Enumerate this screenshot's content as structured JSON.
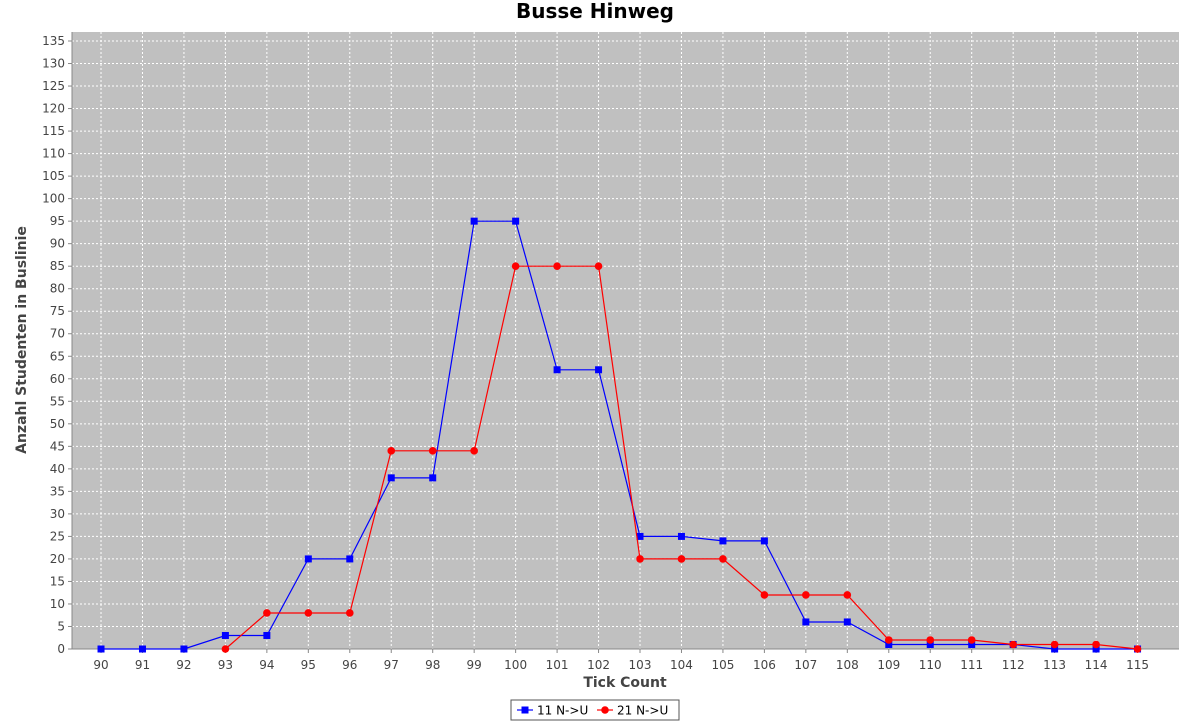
{
  "chart_data": {
    "type": "line",
    "title": "Busse Hinweg",
    "xlabel": "Tick Count",
    "ylabel": "Anzahl Studenten in Buslinie",
    "x": [
      90,
      91,
      92,
      93,
      94,
      95,
      96,
      97,
      98,
      99,
      100,
      101,
      102,
      103,
      104,
      105,
      106,
      107,
      108,
      109,
      110,
      111,
      112,
      113,
      114,
      115
    ],
    "xlim": [
      89.3,
      116.0
    ],
    "ylim": [
      0,
      137
    ],
    "yticks": [
      0,
      5,
      10,
      15,
      20,
      25,
      30,
      35,
      40,
      45,
      50,
      55,
      60,
      65,
      70,
      75,
      80,
      85,
      90,
      95,
      100,
      105,
      110,
      115,
      120,
      125,
      130,
      135
    ],
    "grid": true,
    "legend_position": "bottom-center",
    "plot_background": "#c0c0c0",
    "series": [
      {
        "name": "11 N->U",
        "color": "#0000ff",
        "marker": "square",
        "points": [
          [
            90,
            0
          ],
          [
            91,
            0
          ],
          [
            92,
            0
          ],
          [
            93,
            3
          ],
          [
            94,
            3
          ],
          [
            95,
            20
          ],
          [
            96,
            20
          ],
          [
            97,
            38
          ],
          [
            98,
            38
          ],
          [
            99,
            95
          ],
          [
            100,
            95
          ],
          [
            101,
            62
          ],
          [
            102,
            62
          ],
          [
            103,
            25
          ],
          [
            104,
            25
          ],
          [
            105,
            24
          ],
          [
            106,
            24
          ],
          [
            107,
            6
          ],
          [
            108,
            6
          ],
          [
            109,
            1
          ],
          [
            110,
            1
          ],
          [
            111,
            1
          ],
          [
            112,
            1
          ],
          [
            113,
            0
          ],
          [
            114,
            0
          ],
          [
            115,
            0
          ]
        ]
      },
      {
        "name": "21 N->U",
        "color": "#ff0000",
        "marker": "circle",
        "points": [
          [
            93,
            0
          ],
          [
            94,
            8
          ],
          [
            95,
            8
          ],
          [
            96,
            8
          ],
          [
            97,
            44
          ],
          [
            98,
            44
          ],
          [
            99,
            44
          ],
          [
            100,
            85
          ],
          [
            101,
            85
          ],
          [
            102,
            85
          ],
          [
            103,
            20
          ],
          [
            104,
            20
          ],
          [
            105,
            20
          ],
          [
            106,
            12
          ],
          [
            107,
            12
          ],
          [
            108,
            12
          ],
          [
            109,
            2
          ],
          [
            110,
            2
          ],
          [
            111,
            2
          ],
          [
            112,
            1
          ],
          [
            113,
            1
          ],
          [
            114,
            1
          ],
          [
            115,
            0
          ]
        ]
      }
    ]
  }
}
